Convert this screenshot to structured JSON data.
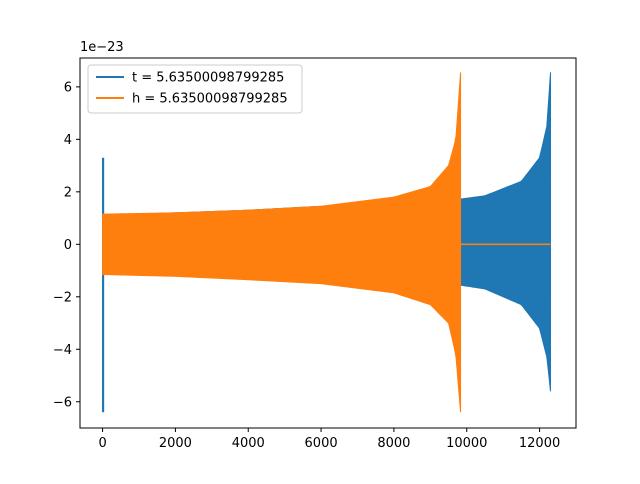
{
  "chart_data": {
    "type": "line",
    "title": "",
    "xlabel": "",
    "ylabel": "",
    "offset_text": "1e−23",
    "xlim": [
      -620,
      13000
    ],
    "ylim": [
      -7.0,
      7.1
    ],
    "xticks": [
      0,
      2000,
      4000,
      6000,
      8000,
      10000,
      12000
    ],
    "xtick_labels": [
      "0",
      "2000",
      "4000",
      "6000",
      "8000",
      "10000",
      "12000"
    ],
    "yticks": [
      -6,
      -4,
      -2,
      0,
      2,
      4,
      6
    ],
    "ytick_labels": [
      "−6",
      "−4",
      "−2",
      "0",
      "2",
      "4",
      "6"
    ],
    "grid": false,
    "legend_position": "upper-left",
    "series": [
      {
        "name": "t = 5.63500098799285",
        "color": "#1f77b4",
        "shape": "chirp_oscillation",
        "spike_x": [
          0,
          30
        ],
        "spike_max": 3.3,
        "spike_min": -6.4,
        "chirp_start_x": 30,
        "chirp_end_x": 12300,
        "envelope_points": [
          {
            "x": 30,
            "upper": 1.1,
            "lower": -1.1
          },
          {
            "x": 2000,
            "upper": 1.2,
            "lower": -1.2
          },
          {
            "x": 4000,
            "upper": 1.3,
            "lower": -1.3
          },
          {
            "x": 6000,
            "upper": 1.45,
            "lower": -1.45
          },
          {
            "x": 8000,
            "upper": 1.6,
            "lower": -1.6
          },
          {
            "x": 9800,
            "upper": 1.72,
            "lower": -1.55
          },
          {
            "x": 10500,
            "upper": 1.85,
            "lower": -1.7
          },
          {
            "x": 11500,
            "upper": 2.4,
            "lower": -2.3
          },
          {
            "x": 12000,
            "upper": 3.3,
            "lower": -3.2
          },
          {
            "x": 12200,
            "upper": 4.5,
            "lower": -4.3
          },
          {
            "x": 12300,
            "upper": 6.55,
            "lower": -5.6
          }
        ],
        "end_value": 0
      },
      {
        "name": "h = 5.63500098799285",
        "color": "#ff7f0e",
        "shape": "chirp_oscillation",
        "chirp_start_x": 0,
        "chirp_end_x": 9830,
        "envelope_points": [
          {
            "x": 0,
            "upper": 1.15,
            "lower": -1.15
          },
          {
            "x": 2000,
            "upper": 1.2,
            "lower": -1.22
          },
          {
            "x": 4000,
            "upper": 1.3,
            "lower": -1.35
          },
          {
            "x": 6000,
            "upper": 1.45,
            "lower": -1.5
          },
          {
            "x": 8000,
            "upper": 1.8,
            "lower": -1.85
          },
          {
            "x": 9000,
            "upper": 2.2,
            "lower": -2.3
          },
          {
            "x": 9500,
            "upper": 3.0,
            "lower": -3.0
          },
          {
            "x": 9700,
            "upper": 4.0,
            "lower": -4.2
          },
          {
            "x": 9830,
            "upper": 6.55,
            "lower": -6.4
          }
        ],
        "flat_after_x": [
          9830,
          12300
        ],
        "flat_value": 0
      }
    ]
  }
}
